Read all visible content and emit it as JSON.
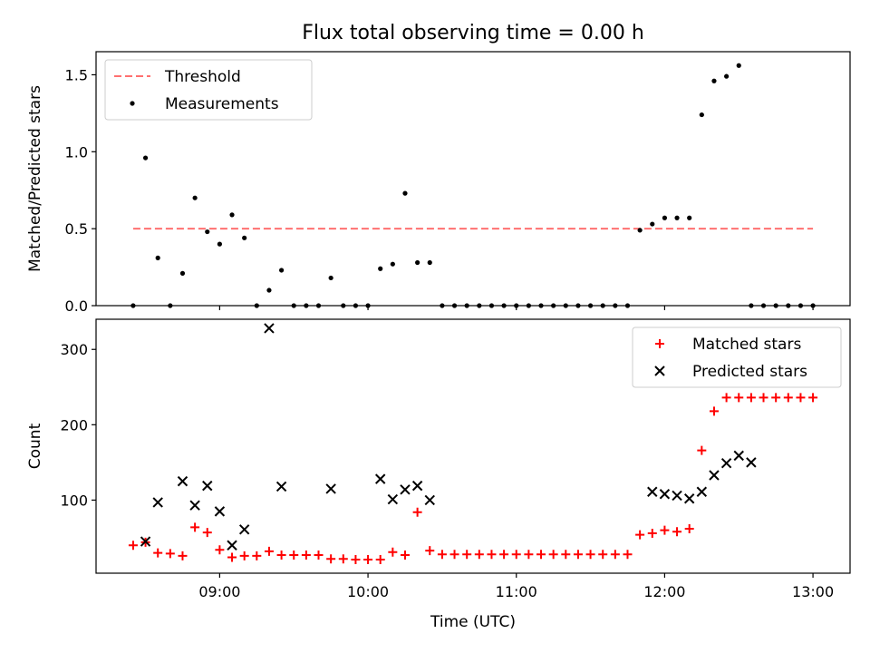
{
  "title": "Flux total observing time = 0.00 h",
  "chart_data": [
    {
      "type": "scatter",
      "ylabel": "Matched/Predicted stars",
      "xlabel": "",
      "ylim": [
        0,
        1.65
      ],
      "yticks": [
        0.0,
        0.5,
        1.0,
        1.5
      ],
      "ytick_labels": [
        "0.0",
        "0.5",
        "1.0",
        "1.5"
      ],
      "legend_position": "upper-left",
      "series": [
        {
          "name": "Threshold",
          "style": "dashed-line",
          "color": "#ff7070",
          "x": [
            "08:25",
            "13:00"
          ],
          "y": [
            0.5,
            0.5
          ]
        },
        {
          "name": "Measurements",
          "style": "dot",
          "color": "#000000",
          "x": [
            "08:25",
            "08:30",
            "08:35",
            "08:40",
            "08:45",
            "08:50",
            "08:55",
            "09:00",
            "09:05",
            "09:10",
            "09:15",
            "09:20",
            "09:25",
            "09:30",
            "09:35",
            "09:40",
            "09:45",
            "09:50",
            "09:55",
            "10:00",
            "10:05",
            "10:10",
            "10:15",
            "10:20",
            "10:25",
            "10:30",
            "10:35",
            "10:40",
            "10:45",
            "10:50",
            "10:55",
            "11:00",
            "11:05",
            "11:10",
            "11:15",
            "11:20",
            "11:25",
            "11:30",
            "11:35",
            "11:40",
            "11:45",
            "11:50",
            "11:55",
            "12:00",
            "12:05",
            "12:10",
            "12:15",
            "12:20",
            "12:25",
            "12:30",
            "12:35",
            "12:40",
            "12:45",
            "12:50",
            "12:55",
            "13:00"
          ],
          "y": [
            0.0,
            0.96,
            0.31,
            0.0,
            0.21,
            0.7,
            0.48,
            0.4,
            0.59,
            0.44,
            0.0,
            0.1,
            0.23,
            0.0,
            0.0,
            0.0,
            0.18,
            0.0,
            0.0,
            0.0,
            0.24,
            0.27,
            0.73,
            0.28,
            0.28,
            0.0,
            0.0,
            0.0,
            0.0,
            0.0,
            0.0,
            0.0,
            0.0,
            0.0,
            0.0,
            0.0,
            0.0,
            0.0,
            0.0,
            0.0,
            0.0,
            0.49,
            0.53,
            0.57,
            0.57,
            0.57,
            1.24,
            1.46,
            1.49,
            1.56,
            0.0,
            0.0,
            0.0,
            0.0,
            0.0,
            0.0
          ]
        }
      ]
    },
    {
      "type": "scatter",
      "ylabel": "Count",
      "xlabel": "Time (UTC)",
      "xlim": [
        "08:10",
        "13:15"
      ],
      "xticks": [
        "09:00",
        "10:00",
        "11:00",
        "12:00",
        "13:00"
      ],
      "xtick_labels": [
        "09:00",
        "10:00",
        "11:00",
        "12:00",
        "13:00"
      ],
      "ylim": [
        3,
        340
      ],
      "yticks": [
        100,
        200,
        300
      ],
      "ytick_labels": [
        "100",
        "200",
        "300"
      ],
      "legend_position": "upper-right",
      "series": [
        {
          "name": "Matched stars",
          "style": "plus",
          "color": "#ff0000",
          "x": [
            "08:25",
            "08:30",
            "08:35",
            "08:40",
            "08:45",
            "08:50",
            "08:55",
            "09:00",
            "09:05",
            "09:10",
            "09:15",
            "09:20",
            "09:25",
            "09:30",
            "09:35",
            "09:40",
            "09:45",
            "09:50",
            "09:55",
            "10:00",
            "10:05",
            "10:10",
            "10:15",
            "10:20",
            "10:25",
            "10:30",
            "10:35",
            "10:40",
            "10:45",
            "10:50",
            "10:55",
            "11:00",
            "11:05",
            "11:10",
            "11:15",
            "11:20",
            "11:25",
            "11:30",
            "11:35",
            "11:40",
            "11:45",
            "11:50",
            "11:55",
            "12:00",
            "12:05",
            "12:10",
            "12:15",
            "12:20",
            "12:25",
            "12:30",
            "12:35",
            "12:40",
            "12:45",
            "12:50",
            "12:55",
            "13:00"
          ],
          "y": [
            40,
            44,
            30,
            29,
            26,
            64,
            57,
            34,
            24,
            26,
            26,
            32,
            27,
            27,
            27,
            27,
            22,
            22,
            21,
            21,
            21,
            31,
            27,
            84,
            33,
            28,
            28,
            28,
            28,
            28,
            28,
            28,
            28,
            28,
            28,
            28,
            28,
            28,
            28,
            28,
            28,
            54,
            56,
            60,
            58,
            62,
            166,
            218,
            236,
            236,
            236,
            236,
            236,
            236,
            236,
            236
          ]
        },
        {
          "name": "Predicted stars",
          "style": "x",
          "color": "#000000",
          "x": [
            "08:30",
            "08:35",
            "08:45",
            "08:50",
            "08:55",
            "09:00",
            "09:05",
            "09:10",
            "09:20",
            "09:25",
            "09:45",
            "10:05",
            "10:10",
            "10:15",
            "10:20",
            "10:25",
            "11:55",
            "12:00",
            "12:05",
            "12:10",
            "12:15",
            "12:20",
            "12:25",
            "12:30",
            "12:35"
          ],
          "y": [
            45,
            97,
            125,
            93,
            119,
            85,
            40,
            61,
            328,
            118,
            115,
            128,
            101,
            114,
            119,
            100,
            111,
            108,
            106,
            102,
            111,
            133,
            149,
            159,
            150
          ]
        }
      ]
    }
  ]
}
